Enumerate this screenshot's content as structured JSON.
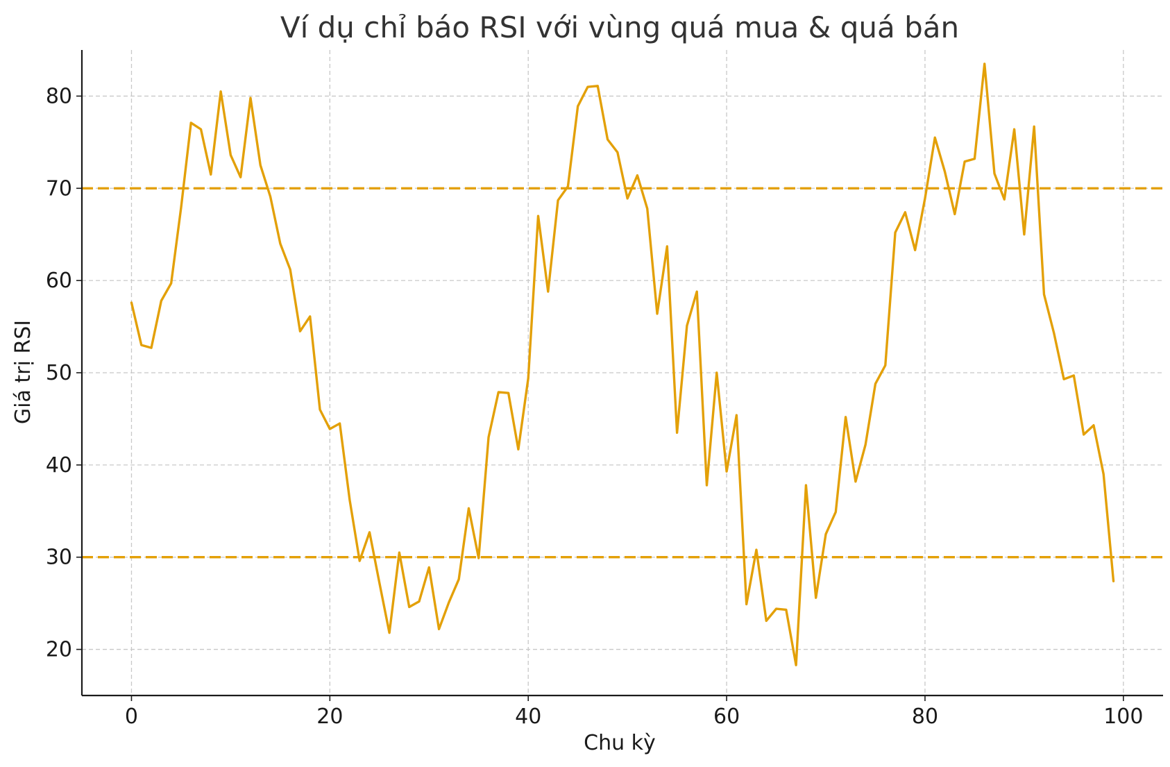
{
  "chart_data": {
    "type": "line",
    "title": "Ví dụ chỉ báo RSI với vùng quá mua & quá bán",
    "xlabel": "Chu kỳ",
    "ylabel": "Giá trị RSI",
    "xlim": [
      -5,
      104
    ],
    "ylim": [
      15,
      85
    ],
    "xticks": [
      0,
      20,
      40,
      60,
      80,
      100
    ],
    "xtick_labels": [
      "0",
      "20",
      "40",
      "60",
      "80",
      "100"
    ],
    "yticks": [
      20,
      30,
      40,
      50,
      60,
      70,
      80
    ],
    "ytick_labels": [
      "20",
      "30",
      "40",
      "50",
      "60",
      "70",
      "80"
    ],
    "grid": true,
    "colors": {
      "line": "#E3A008",
      "reference": "#E3A008",
      "grid": "#c8c8c8",
      "axis": "#1a1a1a"
    },
    "reference_lines": [
      {
        "y": 70,
        "style": "dashed"
      },
      {
        "y": 30,
        "style": "dashed"
      }
    ],
    "series": [
      {
        "values": [
          57.6,
          53.0,
          52.7,
          57.8,
          59.7,
          67.9,
          77.1,
          76.4,
          71.5,
          80.5,
          73.6,
          71.2,
          79.8,
          72.5,
          69.1,
          64.0,
          61.2,
          54.5,
          56.1,
          46.0,
          43.9,
          44.5,
          36.2,
          29.6,
          32.7,
          27.2,
          21.8,
          30.5,
          24.6,
          25.2,
          28.9,
          22.2,
          25.1,
          27.6,
          35.3,
          29.9,
          43.0,
          47.9,
          47.8,
          41.7,
          49.4,
          67.0,
          58.8,
          68.7,
          70.2,
          78.9,
          81.0,
          81.1,
          75.3,
          73.9,
          68.9,
          71.4,
          67.8,
          56.4,
          63.7,
          43.5,
          55.1,
          58.8,
          37.8,
          50.0,
          39.3,
          45.4,
          24.9,
          30.8,
          23.1,
          24.4,
          24.3,
          18.3,
          37.8,
          25.6,
          32.5,
          34.9,
          45.2,
          38.2,
          42.2,
          48.8,
          50.8,
          65.2,
          67.4,
          63.3,
          68.9,
          75.5,
          71.8,
          67.2,
          72.9,
          73.2,
          83.5,
          71.6,
          68.8,
          76.4,
          65.0,
          76.7,
          58.5,
          54.3,
          49.3,
          49.7,
          43.3,
          44.3,
          39.0,
          27.4
        ]
      }
    ]
  }
}
